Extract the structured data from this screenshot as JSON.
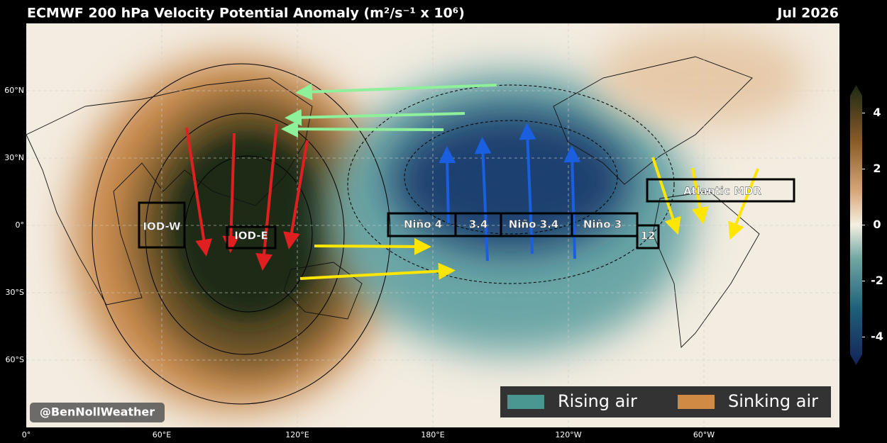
{
  "header": {
    "title": "ECMWF 200 hPa Velocity Potential Anomaly (m²/s⁻¹ x 10⁶)",
    "date": "Jul 2026"
  },
  "map": {
    "lat_ticks": [
      {
        "value": 60,
        "label": "60°N"
      },
      {
        "value": 30,
        "label": "30°N"
      },
      {
        "value": 0,
        "label": "0°"
      },
      {
        "value": -30,
        "label": "30°S"
      },
      {
        "value": -60,
        "label": "60°S"
      }
    ],
    "lon_ticks": [
      {
        "value": 0,
        "label": "0°"
      },
      {
        "value": 60,
        "label": "60°E"
      },
      {
        "value": 120,
        "label": "120°E"
      },
      {
        "value": 180,
        "label": "180°E"
      },
      {
        "value": 240,
        "label": "120°W"
      },
      {
        "value": 300,
        "label": "60°W"
      }
    ],
    "regions": [
      "IOD-W",
      "IOD-E",
      "Niño 4",
      "3.4",
      "Niño 3.4",
      "Niño 3",
      "12",
      "Atlantic MDR"
    ],
    "credit": "@BenNollWeather"
  },
  "legend": [
    "Rising air",
    "Sinking air"
  ],
  "colorbar": {
    "range": [
      -5,
      5
    ],
    "ticks": [
      4,
      2,
      0,
      -2,
      -4
    ]
  }
}
